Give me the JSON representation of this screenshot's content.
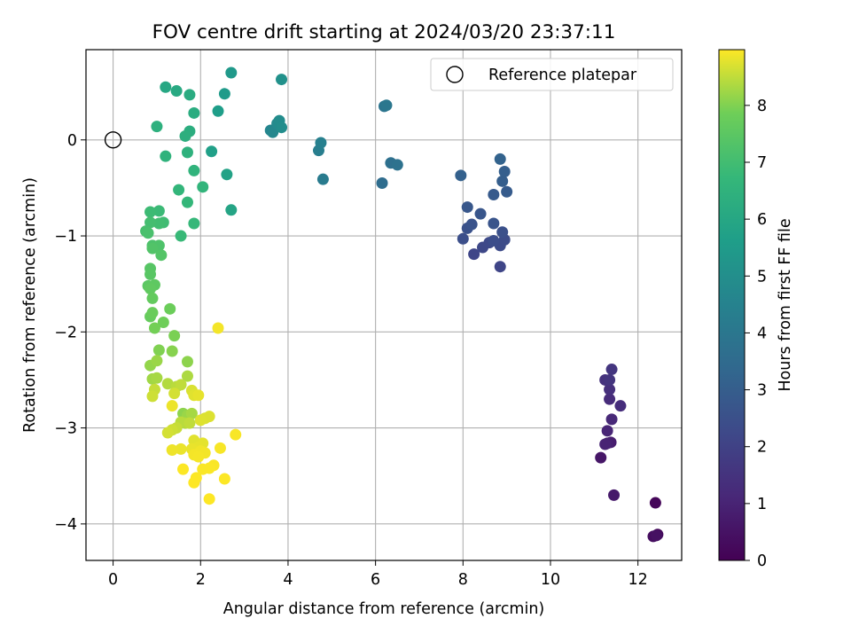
{
  "chart_data": {
    "type": "scatter",
    "title": "FOV centre drift starting at 2024/03/20 23:37:11",
    "xlabel": "Angular distance from reference (arcmin)",
    "ylabel": "Rotation from reference (arcmin)",
    "xlim": [
      -0.62,
      13.0
    ],
    "ylim": [
      -4.38,
      0.94
    ],
    "xticks": [
      0,
      2,
      4,
      6,
      8,
      10,
      12
    ],
    "yticks": [
      -4,
      -3,
      -2,
      -1,
      0
    ],
    "grid": true,
    "legend": {
      "placement": "top-right",
      "entries": [
        "Reference platepar"
      ]
    },
    "reference_point": {
      "x": 0.0,
      "y": 0.0
    },
    "colorbar": {
      "label": "Hours from first FF file",
      "range": [
        0,
        8.98
      ],
      "ticks": [
        0,
        1,
        2,
        3,
        4,
        5,
        6,
        7,
        8
      ],
      "colormap": "viridis"
    },
    "points": [
      [
        12.4,
        -3.78,
        0.15
      ],
      [
        12.45,
        -4.11,
        0.25
      ],
      [
        12.35,
        -4.13,
        0.35
      ],
      [
        12.42,
        -4.12,
        0.45
      ],
      [
        11.15,
        -3.31,
        0.6
      ],
      [
        11.45,
        -3.7,
        0.7
      ],
      [
        11.38,
        -3.15,
        0.8
      ],
      [
        11.3,
        -3.16,
        0.9
      ],
      [
        11.25,
        -3.17,
        1.0
      ],
      [
        11.3,
        -3.03,
        1.05
      ],
      [
        11.4,
        -2.91,
        1.15
      ],
      [
        11.35,
        -2.7,
        1.25
      ],
      [
        11.6,
        -2.77,
        1.3
      ],
      [
        11.35,
        -2.6,
        1.4
      ],
      [
        11.25,
        -2.5,
        1.45
      ],
      [
        11.35,
        -2.5,
        1.55
      ],
      [
        11.4,
        -2.39,
        1.6
      ],
      [
        8.85,
        -1.32,
        2.1
      ],
      [
        8.25,
        -1.19,
        2.15
      ],
      [
        8.45,
        -1.12,
        2.2
      ],
      [
        8.6,
        -1.07,
        2.25
      ],
      [
        8.85,
        -1.1,
        2.3
      ],
      [
        8.95,
        -1.04,
        2.35
      ],
      [
        8.7,
        -1.05,
        2.4
      ],
      [
        8.0,
        -1.03,
        2.45
      ],
      [
        8.9,
        -0.96,
        2.5
      ],
      [
        8.1,
        -0.92,
        2.55
      ],
      [
        8.2,
        -0.88,
        2.6
      ],
      [
        8.7,
        -0.87,
        2.65
      ],
      [
        8.4,
        -0.77,
        2.7
      ],
      [
        8.1,
        -0.7,
        2.75
      ],
      [
        8.7,
        -0.57,
        2.85
      ],
      [
        9.0,
        -0.54,
        2.9
      ],
      [
        8.9,
        -0.43,
        3.0
      ],
      [
        8.95,
        -0.33,
        3.05
      ],
      [
        7.95,
        -0.37,
        3.1
      ],
      [
        8.85,
        -0.2,
        3.2
      ],
      [
        6.15,
        -0.45,
        3.6
      ],
      [
        6.35,
        -0.24,
        3.7
      ],
      [
        6.5,
        -0.26,
        3.8
      ],
      [
        6.2,
        0.35,
        3.9
      ],
      [
        6.25,
        0.36,
        4.0
      ],
      [
        4.8,
        -0.41,
        4.2
      ],
      [
        4.7,
        -0.11,
        4.3
      ],
      [
        4.75,
        -0.03,
        4.4
      ],
      [
        3.6,
        0.1,
        4.6
      ],
      [
        3.65,
        0.08,
        4.7
      ],
      [
        3.75,
        0.17,
        4.8
      ],
      [
        3.8,
        0.2,
        4.9
      ],
      [
        3.85,
        0.13,
        4.95
      ],
      [
        3.85,
        0.63,
        5.1
      ],
      [
        2.7,
        0.7,
        5.4
      ],
      [
        2.55,
        0.48,
        5.5
      ],
      [
        2.4,
        0.3,
        5.6
      ],
      [
        2.25,
        -0.12,
        5.7
      ],
      [
        2.6,
        -0.36,
        5.8
      ],
      [
        2.7,
        -0.73,
        5.9
      ],
      [
        1.2,
        0.55,
        6.0
      ],
      [
        1.45,
        0.51,
        6.1
      ],
      [
        1.75,
        0.47,
        6.2
      ],
      [
        1.85,
        0.28,
        6.25
      ],
      [
        1.75,
        0.09,
        6.3
      ],
      [
        1.65,
        0.04,
        6.35
      ],
      [
        1.0,
        0.14,
        6.4
      ],
      [
        1.7,
        -0.13,
        6.45
      ],
      [
        1.2,
        -0.17,
        6.5
      ],
      [
        1.85,
        -0.32,
        6.55
      ],
      [
        2.05,
        -0.49,
        6.6
      ],
      [
        1.5,
        -0.52,
        6.65
      ],
      [
        1.7,
        -0.65,
        6.7
      ],
      [
        1.85,
        -0.87,
        6.75
      ],
      [
        1.55,
        -1.0,
        6.8
      ],
      [
        1.05,
        -0.74,
        6.85
      ],
      [
        0.85,
        -0.75,
        6.9
      ],
      [
        1.15,
        -0.86,
        6.95
      ],
      [
        1.05,
        -0.87,
        7.0
      ],
      [
        0.85,
        -0.86,
        7.05
      ],
      [
        0.75,
        -0.95,
        7.1
      ],
      [
        0.8,
        -0.97,
        7.15
      ],
      [
        0.9,
        -1.1,
        7.2
      ],
      [
        1.05,
        -1.1,
        7.25
      ],
      [
        0.9,
        -1.13,
        7.3
      ],
      [
        1.1,
        -1.2,
        7.35
      ],
      [
        0.85,
        -1.34,
        7.4
      ],
      [
        0.85,
        -1.4,
        7.45
      ],
      [
        0.8,
        -1.52,
        7.5
      ],
      [
        0.95,
        -1.51,
        7.55
      ],
      [
        0.85,
        -1.55,
        7.6
      ],
      [
        0.9,
        -1.65,
        7.65
      ],
      [
        0.85,
        -1.84,
        7.7
      ],
      [
        0.9,
        -1.8,
        7.75
      ],
      [
        1.3,
        -1.76,
        7.8
      ],
      [
        1.15,
        -1.9,
        7.85
      ],
      [
        0.95,
        -1.96,
        7.9
      ],
      [
        1.4,
        -2.04,
        7.95
      ],
      [
        1.05,
        -2.19,
        8.0
      ],
      [
        1.35,
        -2.2,
        8.05
      ],
      [
        1.7,
        -2.31,
        8.1
      ],
      [
        0.85,
        -2.35,
        8.15
      ],
      [
        1.0,
        -2.3,
        8.2
      ],
      [
        0.9,
        -2.49,
        8.25
      ],
      [
        1.0,
        -2.48,
        8.3
      ],
      [
        1.7,
        -2.46,
        8.35
      ],
      [
        1.25,
        -2.54,
        8.4
      ],
      [
        1.45,
        -2.57,
        8.45
      ],
      [
        1.55,
        -2.55,
        8.5
      ],
      [
        0.95,
        -2.6,
        8.55
      ],
      [
        0.9,
        -2.67,
        8.6
      ],
      [
        1.4,
        -2.64,
        8.65
      ],
      [
        1.8,
        -2.61,
        8.7
      ],
      [
        1.85,
        -2.66,
        8.75
      ],
      [
        1.95,
        -2.66,
        8.8
      ],
      [
        1.35,
        -2.77,
        8.85
      ],
      [
        2.4,
        -1.96,
        8.9
      ],
      [
        1.6,
        -2.85,
        8.1
      ],
      [
        1.7,
        -2.87,
        8.2
      ],
      [
        1.8,
        -2.85,
        8.3
      ],
      [
        1.65,
        -2.95,
        8.4
      ],
      [
        1.55,
        -2.94,
        8.45
      ],
      [
        1.75,
        -2.95,
        8.5
      ],
      [
        1.45,
        -3.0,
        8.55
      ],
      [
        1.35,
        -3.02,
        8.6
      ],
      [
        1.25,
        -3.05,
        8.65
      ],
      [
        2.1,
        -2.9,
        8.7
      ],
      [
        2.2,
        -2.88,
        8.72
      ],
      [
        2.0,
        -2.92,
        8.74
      ],
      [
        1.85,
        -3.13,
        8.76
      ],
      [
        2.05,
        -3.16,
        8.78
      ],
      [
        1.95,
        -3.2,
        8.8
      ],
      [
        1.8,
        -3.22,
        8.82
      ],
      [
        1.55,
        -3.22,
        8.84
      ],
      [
        1.35,
        -3.23,
        8.86
      ],
      [
        2.0,
        -3.24,
        8.88
      ],
      [
        2.1,
        -3.26,
        8.9
      ],
      [
        1.85,
        -3.28,
        8.91
      ],
      [
        1.95,
        -3.3,
        8.92
      ],
      [
        2.45,
        -3.21,
        8.93
      ],
      [
        2.8,
        -3.07,
        8.94
      ],
      [
        2.3,
        -3.39,
        8.95
      ],
      [
        2.2,
        -3.42,
        8.96
      ],
      [
        2.05,
        -3.43,
        8.96
      ],
      [
        1.6,
        -3.43,
        8.97
      ],
      [
        2.55,
        -3.53,
        8.97
      ],
      [
        1.9,
        -3.52,
        8.97
      ],
      [
        1.85,
        -3.57,
        8.98
      ],
      [
        2.2,
        -3.74,
        8.98
      ]
    ]
  }
}
